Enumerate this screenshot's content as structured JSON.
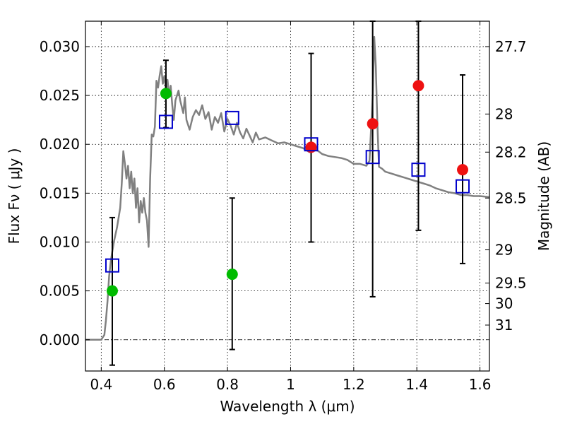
{
  "chart_data": {
    "type": "scatter",
    "xlabel": "Wavelength  λ (μm)",
    "ylabel": "Flux  Fν  ( μJy )",
    "ylabel_right": "Magnitude (AB)",
    "xlim": [
      0.35,
      1.63
    ],
    "ylim": [
      -0.0032,
      0.0326
    ],
    "grid": true,
    "x_ticks": [
      0.4,
      0.6,
      0.8,
      1.0,
      1.2,
      1.4,
      1.6
    ],
    "x_tick_labels": [
      "0.4",
      "0.6",
      "0.8",
      "1",
      "1.2",
      "1.4",
      "1.6"
    ],
    "y_ticks": [
      0.0,
      0.005,
      0.01,
      0.015,
      0.02,
      0.025,
      0.03
    ],
    "y_tick_labels": [
      "0.000",
      "0.005",
      "0.010",
      "0.015",
      "0.020",
      "0.025",
      "0.030"
    ],
    "right_ticks": [
      {
        "label": "27.7",
        "flux": 0.03
      },
      {
        "label": "28",
        "flux": 0.0231
      },
      {
        "label": "28.2",
        "flux": 0.0192
      },
      {
        "label": "28.5",
        "flux": 0.0145
      },
      {
        "label": "29",
        "flux": 0.0092
      },
      {
        "label": "29.5",
        "flux": 0.0058
      },
      {
        "label": "30",
        "flux": 0.0037
      },
      {
        "label": "31",
        "flux": 0.0015
      }
    ],
    "series": [
      {
        "kind": "line",
        "color": "#808080",
        "x": [
          0.35,
          0.4,
          0.41,
          0.415,
          0.42,
          0.425,
          0.43,
          0.44,
          0.45,
          0.46,
          0.465,
          0.47,
          0.475,
          0.48,
          0.485,
          0.49,
          0.495,
          0.5,
          0.505,
          0.51,
          0.515,
          0.52,
          0.525,
          0.53,
          0.535,
          0.54,
          0.545,
          0.55,
          0.555,
          0.56,
          0.565,
          0.57,
          0.575,
          0.58,
          0.585,
          0.59,
          0.595,
          0.6,
          0.605,
          0.61,
          0.615,
          0.62,
          0.625,
          0.63,
          0.635,
          0.64,
          0.645,
          0.65,
          0.66,
          0.665,
          0.67,
          0.68,
          0.69,
          0.7,
          0.71,
          0.72,
          0.73,
          0.74,
          0.75,
          0.76,
          0.77,
          0.78,
          0.79,
          0.8,
          0.81,
          0.82,
          0.83,
          0.84,
          0.85,
          0.86,
          0.87,
          0.88,
          0.89,
          0.9,
          0.92,
          0.94,
          0.96,
          0.98,
          1.0,
          1.02,
          1.04,
          1.06,
          1.08,
          1.1,
          1.12,
          1.14,
          1.16,
          1.18,
          1.2,
          1.22,
          1.24,
          1.25,
          1.26,
          1.265,
          1.27,
          1.275,
          1.28,
          1.29,
          1.3,
          1.32,
          1.34,
          1.36,
          1.38,
          1.4,
          1.42,
          1.44,
          1.46,
          1.48,
          1.5,
          1.52,
          1.54,
          1.56,
          1.58,
          1.6,
          1.63
        ],
        "y": [
          0.0,
          0.0,
          0.0005,
          0.002,
          0.004,
          0.0065,
          0.008,
          0.01,
          0.0115,
          0.0135,
          0.016,
          0.0193,
          0.018,
          0.0165,
          0.0178,
          0.0155,
          0.0172,
          0.015,
          0.0165,
          0.0135,
          0.0155,
          0.012,
          0.0142,
          0.013,
          0.0145,
          0.013,
          0.0122,
          0.0095,
          0.0165,
          0.021,
          0.0208,
          0.0218,
          0.0265,
          0.0258,
          0.027,
          0.028,
          0.0262,
          0.027,
          0.0255,
          0.0266,
          0.025,
          0.026,
          0.024,
          0.0225,
          0.0245,
          0.025,
          0.0255,
          0.0245,
          0.0232,
          0.0248,
          0.0225,
          0.0215,
          0.0228,
          0.0235,
          0.023,
          0.024,
          0.0226,
          0.0233,
          0.0215,
          0.0228,
          0.0222,
          0.0232,
          0.0213,
          0.0226,
          0.0219,
          0.021,
          0.0222,
          0.0212,
          0.0206,
          0.0216,
          0.0209,
          0.0202,
          0.0212,
          0.0205,
          0.0207,
          0.0204,
          0.0201,
          0.0202,
          0.02,
          0.0198,
          0.0196,
          0.0192,
          0.0195,
          0.019,
          0.0188,
          0.0187,
          0.0186,
          0.0184,
          0.018,
          0.018,
          0.0178,
          0.0183,
          0.025,
          0.031,
          0.028,
          0.022,
          0.0177,
          0.0175,
          0.0172,
          0.017,
          0.0168,
          0.0166,
          0.0164,
          0.0162,
          0.016,
          0.0158,
          0.0155,
          0.0153,
          0.0151,
          0.015,
          0.0148,
          0.0148,
          0.0147,
          0.0147,
          0.0146
        ]
      },
      {
        "kind": "points",
        "marker": "circle",
        "color": "#00bb00",
        "x": [
          0.435,
          0.605,
          0.815
        ],
        "y": [
          0.005,
          0.0252,
          0.0067
        ],
        "err_low": [
          -0.0026,
          0.0217,
          -0.001
        ],
        "err_high": [
          0.0125,
          0.0286,
          0.0145
        ]
      },
      {
        "kind": "points",
        "marker": "circle",
        "color": "#ee1111",
        "x": [
          1.065,
          1.26,
          1.405,
          1.545
        ],
        "y": [
          0.0197,
          0.0221,
          0.026,
          0.0174
        ],
        "err_low": [
          0.01,
          0.0044,
          0.0112,
          0.0078
        ],
        "err_high": [
          0.0293,
          0.0326,
          0.0326,
          0.0271
        ]
      },
      {
        "kind": "points",
        "marker": "open-square",
        "color": "#0000cc",
        "x": [
          0.435,
          0.605,
          0.815,
          1.065,
          1.26,
          1.405,
          1.545
        ],
        "y": [
          0.0076,
          0.0223,
          0.0227,
          0.02,
          0.0187,
          0.0174,
          0.0157
        ]
      }
    ]
  }
}
